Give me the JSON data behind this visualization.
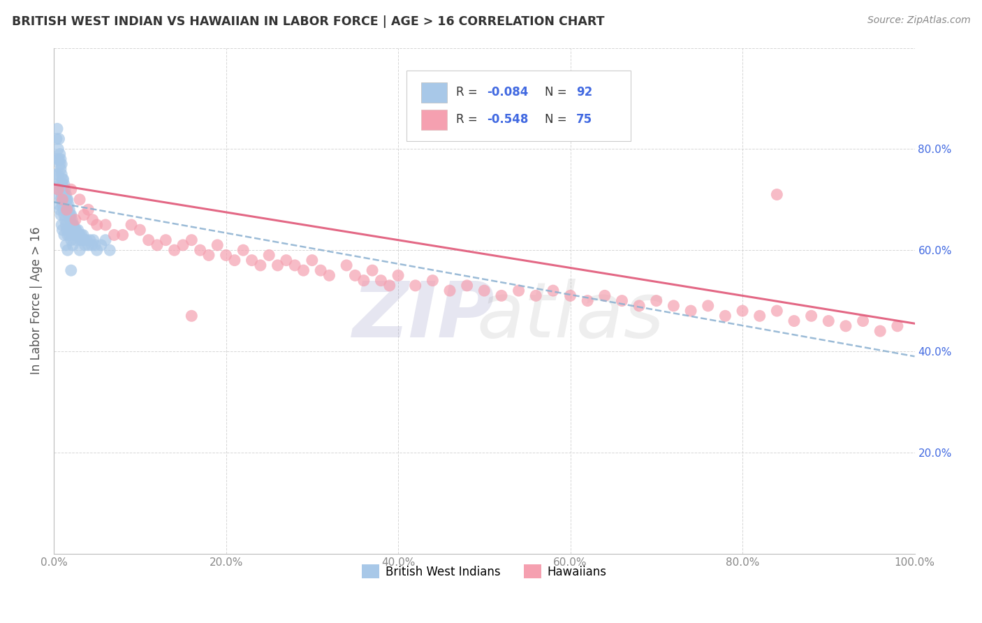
{
  "title": "BRITISH WEST INDIAN VS HAWAIIAN IN LABOR FORCE | AGE > 16 CORRELATION CHART",
  "source_text": "Source: ZipAtlas.com",
  "ylabel": "In Labor Force | Age > 16",
  "xlim": [
    0.0,
    1.0
  ],
  "ylim": [
    0.0,
    1.0
  ],
  "x_ticks": [
    0.0,
    0.2,
    0.4,
    0.6,
    0.8,
    1.0
  ],
  "x_tick_labels": [
    "0.0%",
    "20.0%",
    "40.0%",
    "60.0%",
    "80.0%",
    "100.0%"
  ],
  "y_ticks": [
    0.0,
    0.2,
    0.4,
    0.6,
    0.8,
    1.0
  ],
  "y_tick_labels_right": [
    "",
    "20.0%",
    "40.0%",
    "60.0%",
    "80.0%",
    ""
  ],
  "blue_color": "#a8c8e8",
  "pink_color": "#f5a0b0",
  "blue_line_color": "#8ab0d0",
  "pink_line_color": "#e05878",
  "blue_scatter_x": [
    0.004,
    0.005,
    0.006,
    0.006,
    0.007,
    0.007,
    0.008,
    0.008,
    0.009,
    0.009,
    0.01,
    0.01,
    0.011,
    0.011,
    0.012,
    0.012,
    0.013,
    0.013,
    0.014,
    0.014,
    0.015,
    0.015,
    0.016,
    0.016,
    0.017,
    0.017,
    0.018,
    0.018,
    0.019,
    0.019,
    0.02,
    0.02,
    0.021,
    0.021,
    0.022,
    0.022,
    0.023,
    0.024,
    0.025,
    0.026,
    0.027,
    0.028,
    0.029,
    0.03,
    0.031,
    0.032,
    0.033,
    0.034,
    0.035,
    0.036,
    0.038,
    0.04,
    0.042,
    0.044,
    0.046,
    0.048,
    0.05,
    0.055,
    0.06,
    0.065,
    0.003,
    0.004,
    0.005,
    0.006,
    0.007,
    0.008,
    0.009,
    0.01,
    0.011,
    0.012,
    0.013,
    0.014,
    0.015,
    0.016,
    0.018,
    0.02,
    0.022,
    0.024,
    0.026,
    0.03,
    0.003,
    0.004,
    0.005,
    0.006,
    0.007,
    0.008,
    0.009,
    0.01,
    0.012,
    0.014,
    0.016,
    0.02
  ],
  "blue_scatter_y": [
    0.84,
    0.8,
    0.82,
    0.78,
    0.79,
    0.77,
    0.78,
    0.76,
    0.77,
    0.75,
    0.74,
    0.73,
    0.74,
    0.72,
    0.73,
    0.71,
    0.72,
    0.7,
    0.71,
    0.7,
    0.7,
    0.69,
    0.7,
    0.68,
    0.69,
    0.67,
    0.68,
    0.67,
    0.67,
    0.66,
    0.67,
    0.65,
    0.66,
    0.65,
    0.65,
    0.64,
    0.65,
    0.64,
    0.64,
    0.64,
    0.63,
    0.64,
    0.63,
    0.63,
    0.62,
    0.63,
    0.62,
    0.63,
    0.62,
    0.61,
    0.62,
    0.61,
    0.62,
    0.61,
    0.62,
    0.61,
    0.6,
    0.61,
    0.62,
    0.6,
    0.82,
    0.78,
    0.75,
    0.72,
    0.73,
    0.7,
    0.71,
    0.69,
    0.68,
    0.67,
    0.66,
    0.65,
    0.64,
    0.63,
    0.63,
    0.62,
    0.61,
    0.63,
    0.62,
    0.6,
    0.75,
    0.73,
    0.71,
    0.69,
    0.68,
    0.67,
    0.65,
    0.64,
    0.63,
    0.61,
    0.6,
    0.56
  ],
  "pink_scatter_x": [
    0.005,
    0.01,
    0.015,
    0.02,
    0.025,
    0.03,
    0.035,
    0.04,
    0.045,
    0.05,
    0.06,
    0.07,
    0.08,
    0.09,
    0.1,
    0.11,
    0.12,
    0.13,
    0.14,
    0.15,
    0.16,
    0.17,
    0.18,
    0.19,
    0.2,
    0.21,
    0.22,
    0.23,
    0.24,
    0.25,
    0.26,
    0.27,
    0.28,
    0.29,
    0.3,
    0.31,
    0.32,
    0.34,
    0.35,
    0.36,
    0.37,
    0.38,
    0.39,
    0.4,
    0.42,
    0.44,
    0.46,
    0.48,
    0.5,
    0.52,
    0.54,
    0.56,
    0.58,
    0.6,
    0.62,
    0.64,
    0.66,
    0.68,
    0.7,
    0.72,
    0.74,
    0.76,
    0.78,
    0.8,
    0.82,
    0.84,
    0.86,
    0.88,
    0.9,
    0.92,
    0.94,
    0.96,
    0.98,
    0.16,
    0.84
  ],
  "pink_scatter_y": [
    0.72,
    0.7,
    0.68,
    0.72,
    0.66,
    0.7,
    0.67,
    0.68,
    0.66,
    0.65,
    0.65,
    0.63,
    0.63,
    0.65,
    0.64,
    0.62,
    0.61,
    0.62,
    0.6,
    0.61,
    0.62,
    0.6,
    0.59,
    0.61,
    0.59,
    0.58,
    0.6,
    0.58,
    0.57,
    0.59,
    0.57,
    0.58,
    0.57,
    0.56,
    0.58,
    0.56,
    0.55,
    0.57,
    0.55,
    0.54,
    0.56,
    0.54,
    0.53,
    0.55,
    0.53,
    0.54,
    0.52,
    0.53,
    0.52,
    0.51,
    0.52,
    0.51,
    0.52,
    0.51,
    0.5,
    0.51,
    0.5,
    0.49,
    0.5,
    0.49,
    0.48,
    0.49,
    0.47,
    0.48,
    0.47,
    0.48,
    0.46,
    0.47,
    0.46,
    0.45,
    0.46,
    0.44,
    0.45,
    0.47,
    0.71
  ],
  "blue_trend_x": [
    0.0,
    1.0
  ],
  "blue_trend_y": [
    0.695,
    0.39
  ],
  "pink_trend_x": [
    0.0,
    1.0
  ],
  "pink_trend_y": [
    0.73,
    0.455
  ],
  "background_color": "#ffffff",
  "grid_color": "#cccccc",
  "title_color": "#333333",
  "axis_tick_color": "#888888",
  "ylabel_color": "#555555",
  "right_tick_color": "#4169e1",
  "watermark_zip_color": "#9090c0",
  "watermark_atlas_color": "#909090",
  "legend_box_color": "#eeeeee",
  "legend_text_color": "#333333",
  "legend_value_color": "#4169e1"
}
